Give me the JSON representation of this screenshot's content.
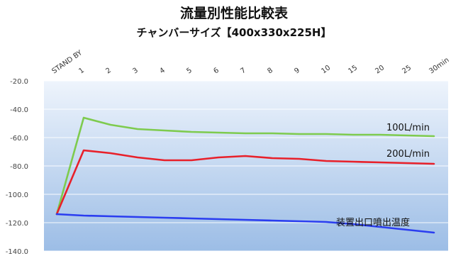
{
  "chart_data": {
    "type": "line",
    "title": "流量別性能比較表",
    "subtitle": "チャンバーサイズ【400x330x225H】",
    "categories": [
      "STAND BY",
      "1",
      "2",
      "3",
      "4",
      "5",
      "6",
      "7",
      "8",
      "9",
      "10",
      "15",
      "20",
      "25",
      "30min"
    ],
    "ylim": [
      -140,
      -20
    ],
    "yticks": [
      -20,
      -40,
      -60,
      -80,
      -100,
      -120,
      -140
    ],
    "ytick_labels": [
      "-20.0",
      "-40.0",
      "-60.0",
      "-80.0",
      "-100.0",
      "-120.0",
      "-140.0"
    ],
    "grid": true,
    "series": [
      {
        "name": "100L/min",
        "color": "#7ecb4e",
        "values": [
          -114,
          -46,
          -51,
          -54,
          -55,
          -56,
          -56.5,
          -57,
          -57,
          -57.5,
          -57.5,
          -58,
          -58,
          -58.5,
          -59
        ]
      },
      {
        "name": "200L/min",
        "color": "#e8202a",
        "values": [
          -114,
          -69,
          -71,
          -74,
          -76,
          -76,
          -74,
          -73,
          -74.5,
          -75,
          -76.5,
          -77,
          -77.5,
          -78,
          -78.5
        ]
      },
      {
        "name": "装置出口噴出温度",
        "color": "#2a3df0",
        "values": [
          -114,
          -115,
          -115.5,
          -116,
          -116.5,
          -117,
          -117.5,
          -118,
          -118.5,
          -119,
          -119.5,
          -121,
          -123,
          -125,
          -127
        ]
      }
    ]
  }
}
